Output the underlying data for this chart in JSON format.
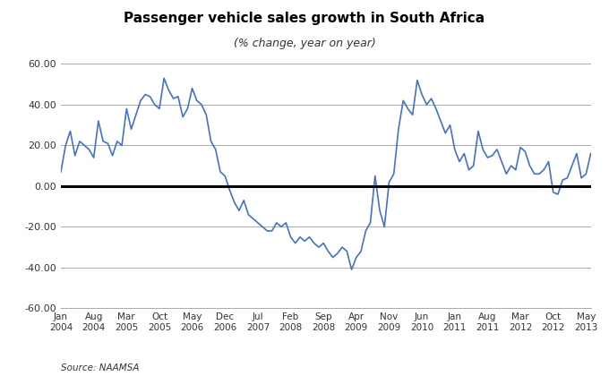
{
  "title": "Passenger vehicle sales growth in South Africa",
  "subtitle": "(% change, year on year)",
  "source": "Source: NAAMSA",
  "line_color": "#4472C4",
  "zero_line_color": "#000000",
  "grid_color": "#AAAAAA",
  "background_color": "#FFFFFF",
  "ylim": [
    -60,
    60
  ],
  "yticks": [
    -60,
    -40,
    -20,
    0,
    20,
    40,
    60
  ],
  "xtick_labels": [
    "Jan\n2004",
    "Aug\n2004",
    "Mar\n2005",
    "Oct\n2005",
    "May\n2006",
    "Dec\n2006",
    "Jul\n2007",
    "Feb\n2008",
    "Sep\n2008",
    "Apr\n2009",
    "Nov\n2009",
    "Jun\n2010",
    "Jan\n2011",
    "Aug\n2011",
    "Mar\n2012",
    "Oct\n2012",
    "May\n2013"
  ],
  "xtick_positions": [
    0,
    7,
    14,
    21,
    28,
    35,
    42,
    49,
    56,
    63,
    70,
    77,
    84,
    91,
    98,
    105,
    112
  ],
  "values": [
    7,
    20,
    27,
    15,
    22,
    20,
    18,
    14,
    32,
    22,
    21,
    15,
    22,
    20,
    38,
    28,
    35,
    42,
    45,
    44,
    40,
    38,
    53,
    47,
    43,
    44,
    34,
    38,
    48,
    42,
    40,
    35,
    22,
    18,
    7,
    5,
    -2,
    -8,
    -12,
    -7,
    -14,
    -16,
    -18,
    -20,
    -22,
    -22,
    -18,
    -20,
    -18,
    -25,
    -28,
    -25,
    -27,
    -25,
    -28,
    -30,
    -28,
    -32,
    -35,
    -33,
    -30,
    -32,
    -41,
    -35,
    -32,
    -22,
    -18,
    5,
    -12,
    -20,
    2,
    6,
    28,
    42,
    38,
    35,
    52,
    45,
    40,
    43,
    38,
    32,
    26,
    30,
    18,
    12,
    16,
    8,
    10,
    27,
    18,
    14,
    15,
    18,
    12,
    6,
    10,
    8,
    19,
    17,
    10,
    6,
    6,
    8,
    12,
    -3,
    -4,
    3,
    4,
    10,
    16,
    4,
    6,
    16
  ]
}
